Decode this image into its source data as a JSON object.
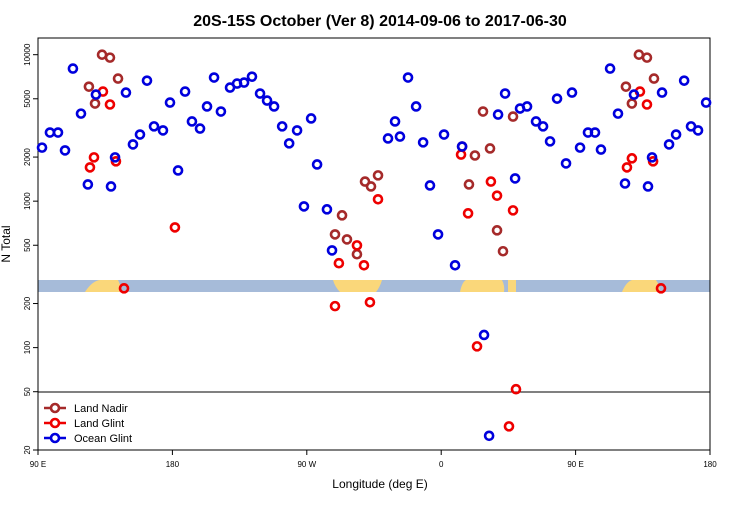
{
  "chart_data": {
    "type": "scatter",
    "title": "20S-15S October (Ver 8)   2014-09-06 to 2017-06-30",
    "xlabel": "Longitude (deg E)",
    "ylabel": "N Total",
    "xlim": [
      90,
      540
    ],
    "xticks": [
      {
        "value": 90,
        "label": "90 E"
      },
      180,
      {
        "value": 270,
        "label": "90 W"
      },
      {
        "value": 360,
        "label": "0"
      },
      {
        "value": 450,
        "label": "90 E"
      },
      {
        "value": 540,
        "label": "180"
      }
    ],
    "ylim": [
      20,
      13000
    ],
    "yticks": [
      20,
      50,
      100,
      200,
      500,
      1000,
      2000,
      5000,
      10000
    ],
    "yscale": "log",
    "legend": "lower left",
    "series": [
      {
        "name": "Land Nadir",
        "color": "#a52a2a",
        "x": [
          124.1,
          132.9,
          138.2,
          128.2,
          143.6,
          293.6,
          288.9,
          296.9,
          303.6,
          309.0,
          313.0,
          317.7,
          374.0,
          378.6,
          382.6,
          388.0,
          392.7,
          397.4,
          401.4,
          408.1,
          483.7,
          492.4,
          497.8,
          487.7,
          502.5
        ],
        "values": [
          6050,
          10000,
          9550,
          4640,
          6870,
          800,
          593,
          548,
          434,
          1360,
          1260,
          1500,
          2360,
          1300,
          2050,
          4090,
          2290,
          632,
          455,
          3780,
          6050,
          10000,
          9550,
          4640,
          6870
        ]
      },
      {
        "name": "Land Glint",
        "color": "#ee0000",
        "x": [
          124.8,
          127.5,
          133.5,
          138.2,
          142.2,
          147.6,
          181.7,
          288.9,
          291.5,
          303.6,
          308.3,
          312.3,
          317.7,
          373.3,
          378.0,
          384.0,
          393.3,
          397.4,
          405.4,
          408.1,
          410.1,
          484.4,
          487.7,
          493.1,
          497.8,
          501.9,
          507.2
        ],
        "values": [
          1700,
          1990,
          5600,
          4570,
          1870,
          254,
          662,
          192,
          377,
          499,
          365,
          204,
          1030,
          2080,
          826,
          102,
          1360,
          1090,
          29,
          865,
          52,
          1700,
          1960,
          5600,
          4570,
          1870,
          254
        ]
      },
      {
        "name": "Ocean Glint",
        "color": "#0000dd",
        "x": [
          92.7,
          98.0,
          103.4,
          108.1,
          113.4,
          118.8,
          123.4,
          128.8,
          138.9,
          141.6,
          148.9,
          153.6,
          158.3,
          163.0,
          167.7,
          173.7,
          178.4,
          183.8,
          188.5,
          193.1,
          198.5,
          203.2,
          207.9,
          212.5,
          218.6,
          223.3,
          228.0,
          233.3,
          238.7,
          243.4,
          248.1,
          253.5,
          258.2,
          263.5,
          272.9,
          276.9,
          268.1,
          283.5,
          286.9,
          324.4,
          329.1,
          332.4,
          337.8,
          343.2,
          347.9,
          352.5,
          357.9,
          361.9,
          369.3,
          374.0,
          388.7,
          392.1,
          398.1,
          402.8,
          409.5,
          412.8,
          417.5,
          423.5,
          428.2,
          432.9,
          437.6,
          443.6,
          447.6,
          453.0,
          458.3,
          463.0,
          467.0,
          473.1,
          478.4,
          483.1,
          489.1,
          498.5,
          501.2,
          507.9,
          512.6,
          517.3,
          522.7,
          527.3,
          532.0,
          537.4
        ],
        "values": [
          2320,
          2940,
          2940,
          2220,
          8040,
          3960,
          1300,
          5340,
          1260,
          1990,
          5510,
          2440,
          2850,
          6650,
          3240,
          3040,
          4710,
          1620,
          5600,
          3500,
          3130,
          4430,
          6980,
          4090,
          5960,
          6350,
          6450,
          7080,
          5430,
          4860,
          4430,
          3240,
          2480,
          3040,
          3670,
          1780,
          921,
          879,
          461,
          2680,
          3500,
          2760,
          6980,
          4430,
          2520,
          1280,
          593,
          2850,
          365,
          2360,
          122,
          25,
          3900,
          5430,
          1430,
          4290,
          4430,
          3500,
          3240,
          2560,
          5010,
          1810,
          5510,
          2320,
          2940,
          2940,
          2250,
          8040,
          3960,
          1320,
          5340,
          1260,
          1990,
          5510,
          2440,
          2850,
          6650,
          3240,
          3040,
          4710
        ]
      }
    ]
  }
}
